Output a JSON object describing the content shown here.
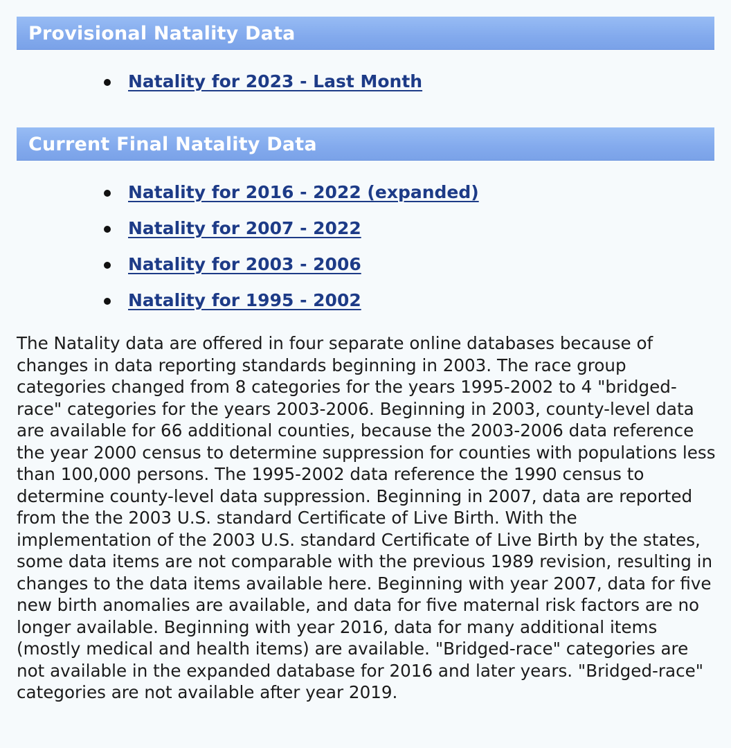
{
  "provisional": {
    "heading": "Provisional Natality Data",
    "links": [
      "Natality for 2023 - Last Month"
    ]
  },
  "final": {
    "heading": "Current Final Natality Data",
    "links": [
      "Natality for 2016 - 2022 (expanded)",
      "Natality for 2007 - 2022",
      "Natality for 2003 - 2006",
      "Natality for 1995 - 2002"
    ]
  },
  "description": "The Natality data are offered in four separate online databases because of changes in data reporting standards beginning in 2003. The race group categories changed from 8 categories for the years 1995-2002 to 4 \"bridged-race\" categories for the years 2003-2006. Beginning in 2003, county-level data are available for 66 additional counties, because the 2003-2006 data reference the year 2000 census to determine suppression for counties with populations less than 100,000 persons. The 1995-2002 data reference the 1990 census to determine county-level data suppression. Beginning in 2007, data are reported from the the 2003 U.S. standard Certificate of Live Birth. With the implementation of the 2003 U.S. standard Certificate of Live Birth by the states, some data items are not comparable with the previous 1989 revision, resulting in changes to the data items available here. Beginning with year 2007, data for five new birth anomalies are available, and data for five maternal risk factors are no longer available. Beginning with year 2016, data for many additional items (mostly medical and health items) are available. \"Bridged-race\" categories are not available in the expanded database for 2016 and later years. \"Bridged-race\" categories are not available after year 2019.",
  "colors": {
    "header_bg": "#83aaed",
    "header_text": "#ffffff",
    "link": "#1d3b87",
    "page_bg": "#f6fafc"
  }
}
